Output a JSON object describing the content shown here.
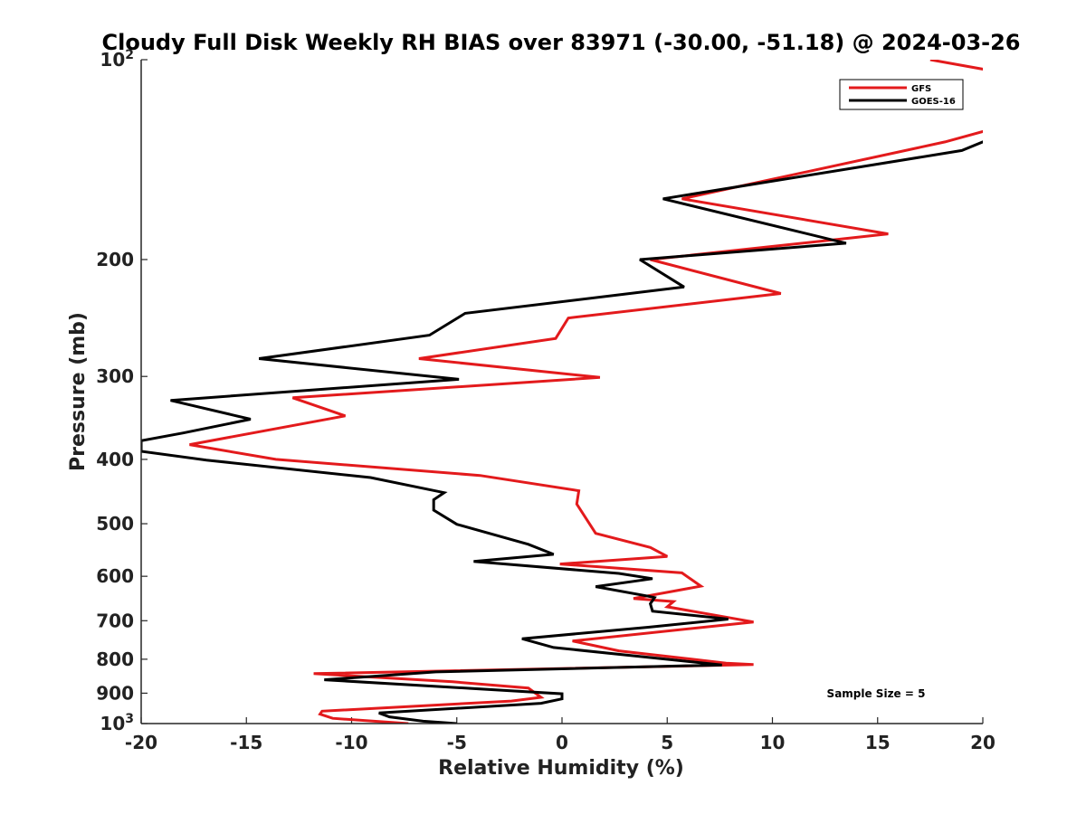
{
  "chart_data": {
    "type": "line",
    "title": "Cloudy Full Disk Weekly RH BIAS over 83971 (-30.00, -51.18) @ 2024-03-26",
    "xlabel": "Relative Humidity (%)",
    "ylabel": "Pressure (mb)",
    "xlim": [
      -20,
      20
    ],
    "ylim": [
      100,
      1000
    ],
    "y_scale": "log",
    "y_reversed": true,
    "x_ticks": [
      "-20",
      "-15",
      "-10",
      "-5",
      "0",
      "5",
      "10",
      "15",
      "20"
    ],
    "y_ticks": [
      {
        "value": 100,
        "base": "10",
        "exp": "2"
      },
      {
        "value": 200,
        "label": "200"
      },
      {
        "value": 300,
        "label": "300"
      },
      {
        "value": 400,
        "label": "400"
      },
      {
        "value": 500,
        "label": "500"
      },
      {
        "value": 600,
        "label": "600"
      },
      {
        "value": 700,
        "label": "700"
      },
      {
        "value": 800,
        "label": "800"
      },
      {
        "value": 900,
        "label": "900"
      },
      {
        "value": 1000,
        "base": "10",
        "exp": "3"
      }
    ],
    "legend_position": "top-right",
    "series": [
      {
        "name": "GFS",
        "color": "#e31a1c",
        "points": [
          [
            17.5,
            100
          ],
          [
            20.5,
            104
          ],
          [
            20.5,
            127
          ],
          [
            18.2,
            133
          ],
          [
            5.7,
            162
          ],
          [
            15.5,
            183
          ],
          [
            4.2,
            200
          ],
          [
            10.4,
            225
          ],
          [
            0.3,
            245
          ],
          [
            -0.3,
            263
          ],
          [
            -6.8,
            282
          ],
          [
            1.8,
            301
          ],
          [
            -12.8,
            323
          ],
          [
            -10.3,
            344
          ],
          [
            -17.7,
            380
          ],
          [
            -13.6,
            400
          ],
          [
            -3.9,
            423
          ],
          [
            0.8,
            446
          ],
          [
            0.7,
            467
          ],
          [
            1.6,
            517
          ],
          [
            4.2,
            543
          ],
          [
            5.0,
            560
          ],
          [
            -0.1,
            575
          ],
          [
            5.7,
            593
          ],
          [
            6.6,
            621
          ],
          [
            3.4,
            648
          ],
          [
            5.3,
            655
          ],
          [
            5.0,
            667
          ],
          [
            9.1,
            703
          ],
          [
            0.5,
            751
          ],
          [
            2.7,
            777
          ],
          [
            7.8,
            811
          ],
          [
            9.1,
            815
          ],
          [
            -11.8,
            841
          ],
          [
            -5.2,
            865
          ],
          [
            -1.6,
            884
          ],
          [
            -1.0,
            913
          ],
          [
            -2.4,
            925
          ],
          [
            -11.4,
            958
          ],
          [
            -11.5,
            968
          ],
          [
            -10.9,
            982
          ],
          [
            -7.3,
            1000
          ]
        ]
      },
      {
        "name": "GOES-16",
        "color": "#000000",
        "points": [
          [
            20.5,
            131
          ],
          [
            19.0,
            137
          ],
          [
            4.8,
            162
          ],
          [
            13.5,
            189
          ],
          [
            3.7,
            200
          ],
          [
            5.8,
            220
          ],
          [
            -4.6,
            241
          ],
          [
            -6.3,
            260
          ],
          [
            -14.4,
            282
          ],
          [
            -4.9,
            303
          ],
          [
            -18.6,
            326
          ],
          [
            -14.8,
            348
          ],
          [
            -18.0,
            365
          ],
          [
            -20.0,
            375
          ],
          [
            -20.0,
            389
          ],
          [
            -16.9,
            401
          ],
          [
            -9.1,
            426
          ],
          [
            -5.6,
            449
          ],
          [
            -6.1,
            460
          ],
          [
            -6.1,
            477
          ],
          [
            -5.0,
            501
          ],
          [
            -1.6,
            537
          ],
          [
            -0.4,
            556
          ],
          [
            -4.2,
            570
          ],
          [
            2.7,
            594
          ],
          [
            4.3,
            605
          ],
          [
            1.6,
            622
          ],
          [
            4.1,
            643
          ],
          [
            4.4,
            646
          ],
          [
            4.2,
            660
          ],
          [
            4.3,
            677
          ],
          [
            7.9,
            696
          ],
          [
            4.1,
            716
          ],
          [
            -1.9,
            745
          ],
          [
            -0.4,
            768
          ],
          [
            7.6,
            816
          ],
          [
            -6.0,
            836
          ],
          [
            -11.3,
            859
          ],
          [
            0.0,
            902
          ],
          [
            0.0,
            918
          ],
          [
            -1.0,
            932
          ],
          [
            -8.7,
            964
          ],
          [
            -8.2,
            977
          ],
          [
            -6.6,
            992
          ],
          [
            -5.0,
            1000
          ]
        ]
      }
    ],
    "annotations": [
      {
        "text": "Sample Size = 5"
      }
    ]
  }
}
